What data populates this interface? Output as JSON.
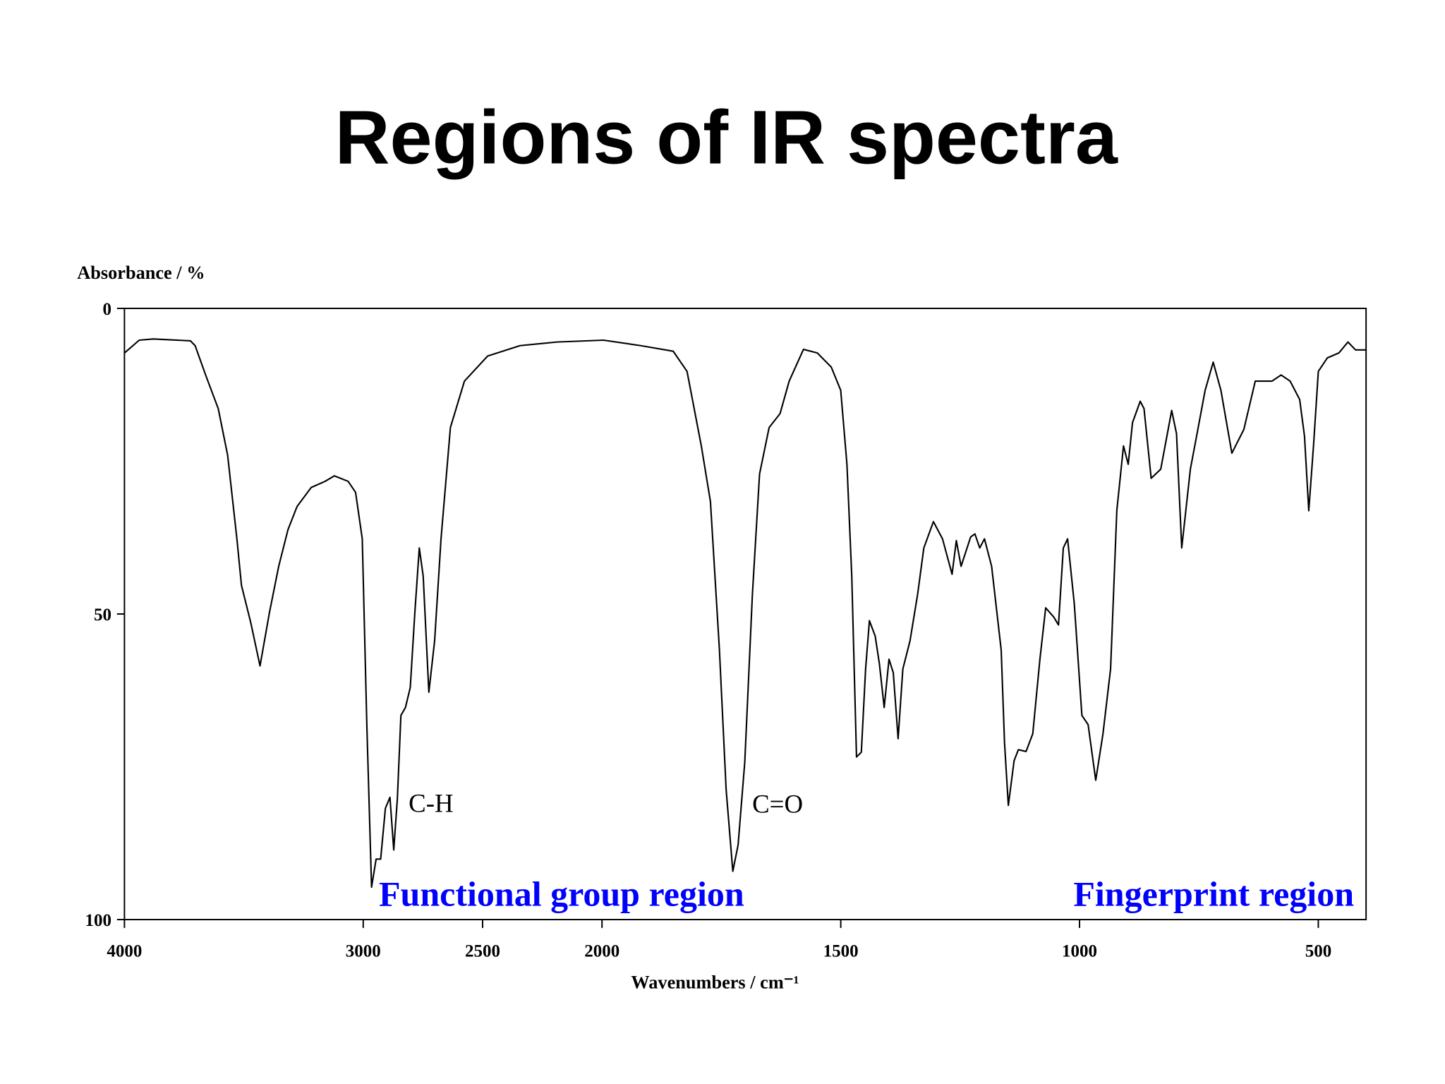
{
  "chart_data": {
    "type": "line",
    "title": "Regions of IR spectra",
    "ylabel": "Absorbance / %",
    "xlabel": "Wavenumbers / cm⁻¹",
    "color": "#000000",
    "xlim": [
      4000,
      400
    ],
    "x_scale_break": 2000,
    "xticks": [
      4000,
      3000,
      2500,
      2000,
      1500,
      1000,
      500
    ],
    "ylim": [
      0,
      100
    ],
    "y_inverted": true,
    "yticks": [
      0,
      50,
      100
    ],
    "grid": false,
    "annotations": [
      {
        "text": "C-H"
      },
      {
        "text": "C=O"
      }
    ],
    "region_labels": [
      {
        "text": "Functional group region",
        "color": "#0000ff"
      },
      {
        "text": "Fingerprint region",
        "color": "#0000ff"
      }
    ],
    "x": [
      4000,
      3938,
      3880,
      3724,
      3704,
      3658,
      3607,
      3568,
      3529,
      3510,
      3471,
      3432,
      3393,
      3354,
      3315,
      3277,
      3218,
      3160,
      3121,
      3063,
      3032,
      3004,
      2985,
      2965,
      2946,
      2927,
      2907,
      2888,
      2872,
      2857,
      2842,
      2823,
      2803,
      2784,
      2765,
      2749,
      2725,
      2701,
      2674,
      2635,
      2576,
      2479,
      2343,
      2188,
      1997,
      1919,
      1851,
      1822,
      1792,
      1773,
      1754,
      1740,
      1726,
      1715,
      1701,
      1685,
      1670,
      1650,
      1627,
      1608,
      1578,
      1549,
      1520,
      1500,
      1487,
      1477,
      1467,
      1457,
      1448,
      1440,
      1428,
      1419,
      1409,
      1399,
      1390,
      1380,
      1370,
      1355,
      1339,
      1326,
      1306,
      1287,
      1267,
      1258,
      1248,
      1228,
      1219,
      1209,
      1199,
      1184,
      1164,
      1157,
      1149,
      1137,
      1128,
      1112,
      1098,
      1083,
      1071,
      1054,
      1044,
      1034,
      1025,
      1011,
      995,
      982,
      966,
      951,
      935,
      922,
      908,
      898,
      889,
      873,
      865,
      850,
      830,
      807,
      797,
      786,
      768,
      753,
      737,
      720,
      704,
      681,
      656,
      632,
      597,
      578,
      559,
      539,
      529,
      520,
      510,
      500,
      481,
      457,
      438,
      422,
      400
    ],
    "values": [
      7.3,
      5.2,
      5.0,
      5.3,
      6.1,
      11.1,
      16.4,
      24,
      37.7,
      45.3,
      51.4,
      58.5,
      49.8,
      42.2,
      36.2,
      32.4,
      29.3,
      28.3,
      27.4,
      28.3,
      30.1,
      37.7,
      68.1,
      94.7,
      90.1,
      90.1,
      81.8,
      80,
      88.6,
      80.2,
      66.6,
      65.3,
      62,
      49.8,
      39.2,
      43.8,
      62.8,
      54.4,
      37.7,
      19.5,
      11.9,
      7.8,
      6.1,
      5.5,
      5.2,
      6.1,
      7,
      10.3,
      22.5,
      31.6,
      55.9,
      78.7,
      92.1,
      87.8,
      74.2,
      46.8,
      27.1,
      19.5,
      17.2,
      11.9,
      6.7,
      7.3,
      9.6,
      13.4,
      25.5,
      43.8,
      73.4,
      72.6,
      59,
      51.1,
      53.6,
      58.2,
      65.3,
      57.4,
      59.6,
      70.4,
      59,
      54.4,
      46.8,
      39.2,
      34.9,
      37.7,
      43.5,
      38,
      42.2,
      37.4,
      36.9,
      39.2,
      37.7,
      42.2,
      55.9,
      71.1,
      81.3,
      74,
      72.2,
      72.5,
      69.6,
      57.4,
      49,
      50.5,
      51.8,
      39.2,
      37.7,
      48.3,
      66.6,
      68.1,
      77.2,
      69.6,
      59,
      33.1,
      22.5,
      25.5,
      18.7,
      15.2,
      16.4,
      27.8,
      26.3,
      16.7,
      20.5,
      39.2,
      26.3,
      20.1,
      13.4,
      8.8,
      13.4,
      23.7,
      19.8,
      11.9,
      11.9,
      10.9,
      11.9,
      14.9,
      20.9,
      33.1,
      22.5,
      10.3,
      8.1,
      7.3,
      5.5,
      6.8,
      6.8
    ]
  }
}
